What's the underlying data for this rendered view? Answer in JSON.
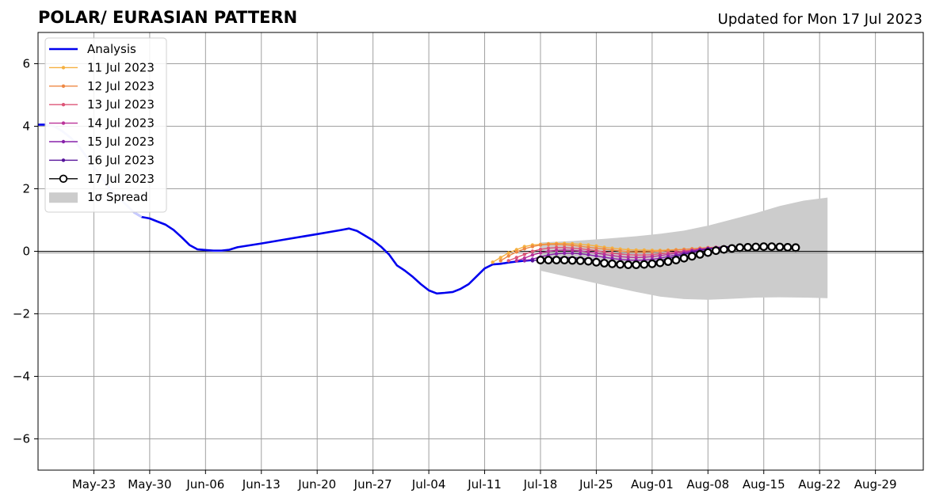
{
  "chart_data": {
    "type": "line",
    "title": "POLAR/ EURASIAN  PATTERN",
    "subtitle": "Updated for Mon 17 Jul 2023",
    "x_start": "2023-05-16",
    "x_end": "2023-09-04",
    "ylim": [
      -7,
      7
    ],
    "yticks": [
      -6,
      -4,
      -2,
      0,
      2,
      4,
      6
    ],
    "ytick_labels": [
      "−6",
      "−4",
      "−2",
      "0",
      "2",
      "4",
      "6"
    ],
    "xticks": [
      "2023-05-23",
      "2023-05-30",
      "2023-06-06",
      "2023-06-13",
      "2023-06-20",
      "2023-06-27",
      "2023-07-04",
      "2023-07-11",
      "2023-07-18",
      "2023-07-25",
      "2023-08-01",
      "2023-08-08",
      "2023-08-15",
      "2023-08-22",
      "2023-08-29"
    ],
    "xtick_labels": [
      "May-23",
      "May-30",
      "Jun-06",
      "Jun-13",
      "Jun-20",
      "Jun-27",
      "Jul-04",
      "Jul-11",
      "Jul-18",
      "Jul-25",
      "Aug-01",
      "Aug-08",
      "Aug-15",
      "Aug-22",
      "Aug-29"
    ],
    "grid": true,
    "legend_position": "upper-left",
    "analysis": {
      "name": "Analysis",
      "color": "#0000ee",
      "points": [
        [
          "2023-05-16",
          4.05
        ],
        [
          "2023-05-17",
          4.05
        ],
        [
          "2023-05-18",
          4.0
        ],
        [
          "2023-05-19",
          3.85
        ],
        [
          "2023-05-20",
          3.65
        ],
        [
          "2023-05-21",
          3.4
        ],
        [
          "2023-05-22",
          3.05
        ],
        [
          "2023-05-23",
          2.7
        ],
        [
          "2023-05-24",
          2.35
        ],
        [
          "2023-05-25",
          2.0
        ],
        [
          "2023-05-26",
          1.75
        ],
        [
          "2023-05-27",
          1.5
        ],
        [
          "2023-05-28",
          1.25
        ],
        [
          "2023-05-29",
          1.1
        ],
        [
          "2023-05-30",
          1.05
        ],
        [
          "2023-05-31",
          0.95
        ],
        [
          "2023-06-01",
          0.85
        ],
        [
          "2023-06-02",
          0.68
        ],
        [
          "2023-06-03",
          0.45
        ],
        [
          "2023-06-04",
          0.2
        ],
        [
          "2023-06-05",
          0.06
        ],
        [
          "2023-06-06",
          0.04
        ],
        [
          "2023-06-07",
          0.02
        ],
        [
          "2023-06-08",
          0.02
        ],
        [
          "2023-06-09",
          0.05
        ],
        [
          "2023-06-10",
          0.13
        ],
        [
          "2023-06-13",
          0.25
        ],
        [
          "2023-06-16",
          0.38
        ],
        [
          "2023-06-20",
          0.55
        ],
        [
          "2023-06-23",
          0.68
        ],
        [
          "2023-06-24",
          0.73
        ],
        [
          "2023-06-25",
          0.65
        ],
        [
          "2023-06-26",
          0.5
        ],
        [
          "2023-06-27",
          0.35
        ],
        [
          "2023-06-28",
          0.15
        ],
        [
          "2023-06-29",
          -0.1
        ],
        [
          "2023-06-30",
          -0.45
        ],
        [
          "2023-07-01",
          -0.62
        ],
        [
          "2023-07-02",
          -0.82
        ],
        [
          "2023-07-03",
          -1.05
        ],
        [
          "2023-07-04",
          -1.25
        ],
        [
          "2023-07-05",
          -1.35
        ],
        [
          "2023-07-06",
          -1.33
        ],
        [
          "2023-07-07",
          -1.3
        ],
        [
          "2023-07-08",
          -1.2
        ],
        [
          "2023-07-09",
          -1.05
        ],
        [
          "2023-07-10",
          -0.8
        ],
        [
          "2023-07-11",
          -0.55
        ],
        [
          "2023-07-12",
          -0.42
        ],
        [
          "2023-07-13",
          -0.4
        ],
        [
          "2023-07-14",
          -0.36
        ],
        [
          "2023-07-15",
          -0.33
        ],
        [
          "2023-07-16",
          -0.3
        ],
        [
          "2023-07-17",
          -0.28
        ]
      ]
    },
    "forecasts": [
      {
        "name": "11 Jul 2023",
        "color": "#f5b041",
        "start": "2023-07-12",
        "values": [
          -0.35,
          -0.2,
          -0.05,
          0.05,
          0.15,
          0.2,
          0.22,
          0.24,
          0.25,
          0.25,
          0.24,
          0.22,
          0.2,
          0.17,
          0.13,
          0.1,
          0.07,
          0.05,
          0.04,
          0.04,
          0.03,
          0.03,
          0.04,
          0.05,
          0.06,
          0.07,
          0.08,
          0.1,
          0.12,
          0.14,
          0.15
        ]
      },
      {
        "name": "12 Jul 2023",
        "color": "#ee8844",
        "start": "2023-07-13",
        "values": [
          -0.3,
          -0.15,
          -0.02,
          0.08,
          0.15,
          0.2,
          0.22,
          0.22,
          0.21,
          0.19,
          0.16,
          0.13,
          0.1,
          0.07,
          0.04,
          0.01,
          -0.01,
          -0.02,
          -0.02,
          -0.01,
          0.0,
          0.02,
          0.04,
          0.06,
          0.08,
          0.1,
          0.12,
          0.13,
          0.14,
          0.15
        ]
      },
      {
        "name": "13 Jul 2023",
        "color": "#dd5577",
        "start": "2023-07-14",
        "values": [
          -0.3,
          -0.2,
          -0.1,
          0.0,
          0.06,
          0.1,
          0.12,
          0.12,
          0.1,
          0.08,
          0.05,
          0.02,
          -0.02,
          -0.06,
          -0.09,
          -0.11,
          -0.12,
          -0.12,
          -0.11,
          -0.08,
          -0.05,
          -0.02,
          0.01,
          0.04,
          0.07,
          0.1,
          0.12,
          0.14,
          0.15
        ]
      },
      {
        "name": "14 Jul 2023",
        "color": "#bb3399",
        "start": "2023-07-15",
        "values": [
          -0.3,
          -0.22,
          -0.12,
          -0.05,
          0.0,
          0.03,
          0.04,
          0.03,
          0.01,
          -0.02,
          -0.06,
          -0.1,
          -0.14,
          -0.17,
          -0.19,
          -0.2,
          -0.19,
          -0.17,
          -0.14,
          -0.1,
          -0.06,
          -0.02,
          0.02,
          0.06,
          0.09,
          0.12,
          0.14,
          0.15
        ]
      },
      {
        "name": "15 Jul 2023",
        "color": "#8822aa",
        "start": "2023-07-16",
        "values": [
          -0.3,
          -0.25,
          -0.18,
          -0.12,
          -0.08,
          -0.06,
          -0.06,
          -0.08,
          -0.11,
          -0.15,
          -0.19,
          -0.23,
          -0.26,
          -0.28,
          -0.29,
          -0.28,
          -0.26,
          -0.22,
          -0.17,
          -0.12,
          -0.06,
          0.0,
          0.05,
          0.09,
          0.12,
          0.14,
          0.15
        ]
      },
      {
        "name": "16 Jul 2023",
        "color": "#551199",
        "start": "2023-07-17",
        "values": [
          -0.3,
          -0.27,
          -0.24,
          -0.21,
          -0.2,
          -0.2,
          -0.22,
          -0.25,
          -0.29,
          -0.33,
          -0.36,
          -0.38,
          -0.39,
          -0.39,
          -0.37,
          -0.34,
          -0.29,
          -0.23,
          -0.17,
          -0.1,
          -0.04,
          0.02,
          0.07,
          0.11,
          0.14,
          0.15
        ]
      },
      {
        "name": "17 Jul 2023",
        "color": "#000000",
        "start": "2023-07-18",
        "values": [
          -0.28,
          -0.28,
          -0.28,
          -0.28,
          -0.29,
          -0.3,
          -0.32,
          -0.35,
          -0.38,
          -0.4,
          -0.42,
          -0.43,
          -0.43,
          -0.42,
          -0.4,
          -0.37,
          -0.33,
          -0.28,
          -0.22,
          -0.16,
          -0.1,
          -0.04,
          0.02,
          0.06,
          0.09,
          0.12,
          0.13,
          0.14,
          0.15,
          0.15,
          0.14,
          0.13,
          0.12
        ],
        "marker": "open-circle"
      }
    ],
    "spread": {
      "name": "1σ Spread",
      "color": "#cccccc",
      "start": "2023-07-18",
      "end": "2023-08-19",
      "upper": [
        [
          0,
          0.28
        ],
        [
          4,
          0.33
        ],
        [
          8,
          0.4
        ],
        [
          12,
          0.48
        ],
        [
          15,
          0.56
        ],
        [
          18,
          0.66
        ],
        [
          21,
          0.82
        ],
        [
          24,
          1.02
        ],
        [
          27,
          1.22
        ],
        [
          30,
          1.45
        ],
        [
          33,
          1.62
        ],
        [
          36,
          1.72
        ]
      ],
      "lower": [
        [
          0,
          -0.62
        ],
        [
          4,
          -0.85
        ],
        [
          8,
          -1.08
        ],
        [
          12,
          -1.3
        ],
        [
          15,
          -1.45
        ],
        [
          18,
          -1.53
        ],
        [
          21,
          -1.55
        ],
        [
          24,
          -1.52
        ],
        [
          27,
          -1.48
        ],
        [
          30,
          -1.47
        ],
        [
          33,
          -1.48
        ],
        [
          36,
          -1.5
        ]
      ]
    }
  }
}
